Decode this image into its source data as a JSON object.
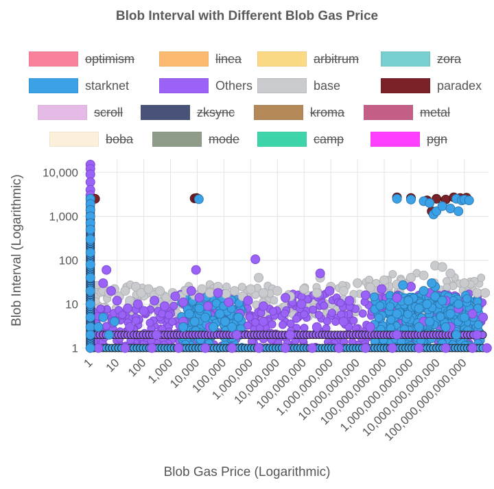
{
  "title": "Blob Interval with Different Blob Gas Price",
  "legend": [
    {
      "label": "optimism",
      "color": "#f7587b",
      "hidden": true
    },
    {
      "label": "linea",
      "color": "#fca442",
      "hidden": true
    },
    {
      "label": "arbitrum",
      "color": "#fccd5c",
      "hidden": true
    },
    {
      "label": "zora",
      "color": "#4bbfbf",
      "hidden": true
    },
    {
      "label": "starknet",
      "color": "#3ba2e8",
      "hidden": false
    },
    {
      "label": "Others",
      "color": "#9b62f7",
      "hidden": false
    },
    {
      "label": "base",
      "color": "#c9cbcf",
      "hidden": false
    },
    {
      "label": "paradex",
      "color": "#7a2228",
      "hidden": false
    },
    {
      "label": "scroll",
      "color": "#dea4e0",
      "hidden": true
    },
    {
      "label": "zksync",
      "color": "#0c1a4a",
      "hidden": true
    },
    {
      "label": "kroma",
      "color": "#9c6120",
      "hidden": true
    },
    {
      "label": "metal",
      "color": "#b02a5e",
      "hidden": true
    },
    {
      "label": "boba",
      "color": "#fdebd0",
      "hidden": true
    },
    {
      "label": "mode",
      "color": "#6b7c63",
      "hidden": true
    },
    {
      "label": "camp",
      "color": "#00c88f",
      "hidden": true
    },
    {
      "label": "pgn",
      "color": "#ff00ff",
      "hidden": true
    }
  ],
  "chart_data": {
    "type": "scatter",
    "title": "Blob Interval with Different Blob Gas Price",
    "xlabel": "Blob Gas Price (Logarithmic)",
    "ylabel": "Blob Interval (Logarithmic)",
    "x_scale": "log",
    "y_scale": "log",
    "xlim": [
      0.5,
      800000000000000
    ],
    "ylim": [
      0.85,
      20000
    ],
    "x_ticks": [
      1,
      10,
      100,
      1000,
      10000,
      100000,
      1000000,
      10000000,
      100000000,
      1000000000,
      10000000000,
      100000000000,
      1000000000000,
      10000000000000,
      100000000000000
    ],
    "x_tick_labels": [
      "1",
      "10",
      "100",
      "1,000",
      "10,000",
      "100,000",
      "1,000,000",
      "10,000,000",
      "100,000,000",
      "1,000,000,000",
      "10,000,000,000",
      "100,000,000,000",
      "1,000,000,000,000",
      "10,000,000,000,000",
      "100,000,000,000,000"
    ],
    "y_ticks": [
      1,
      10,
      100,
      1000,
      10000
    ],
    "y_tick_labels": [
      "1",
      "10",
      "100",
      "1,000",
      "10,000"
    ],
    "grid": true,
    "legend_position": "top",
    "series": [
      {
        "name": "base",
        "color": "#c9cbcf",
        "points": [
          [
            3,
            20
          ],
          [
            5,
            18
          ],
          [
            8,
            22
          ],
          [
            12,
            15
          ],
          [
            20,
            20
          ],
          [
            30,
            12
          ],
          [
            50,
            25
          ],
          [
            80,
            18
          ],
          [
            150,
            22
          ],
          [
            250,
            16
          ],
          [
            400,
            20
          ],
          [
            700,
            14
          ],
          [
            1200,
            18
          ],
          [
            2500,
            15
          ],
          [
            4000,
            20
          ],
          [
            8000,
            16
          ],
          [
            15000,
            22
          ],
          [
            30000,
            18
          ],
          [
            60000,
            25
          ],
          [
            120000,
            17
          ],
          [
            250000,
            20
          ],
          [
            500000,
            15
          ],
          [
            1000000,
            22
          ],
          [
            3000000,
            18
          ],
          [
            10000000,
            20
          ],
          [
            30000000,
            15
          ],
          [
            100000000,
            22
          ],
          [
            300000000,
            18
          ],
          [
            1000000000,
            25
          ],
          [
            3000000000,
            20
          ],
          [
            10000000000,
            30
          ],
          [
            30000000000,
            24
          ],
          [
            100000000000,
            35
          ],
          [
            300000000000,
            28
          ],
          [
            1000000000000,
            40
          ],
          [
            3000000000000,
            45
          ],
          [
            8000000000000,
            75
          ],
          [
            15000000000000,
            70
          ],
          [
            30000000000000,
            50
          ],
          [
            100000000000000,
            30
          ],
          [
            300000000000000,
            18
          ],
          [
            600000000000000,
            18
          ],
          [
            400000000,
            40
          ],
          [
            2000000,
            40
          ]
        ]
      },
      {
        "name": "Others",
        "color": "#9b62f7",
        "points": [
          [
            1,
            15000
          ],
          [
            1,
            12000
          ],
          [
            1,
            9000
          ],
          [
            1,
            6000
          ],
          [
            1,
            4000
          ],
          [
            1,
            3000
          ],
          [
            3,
            30
          ],
          [
            4,
            60
          ],
          [
            6,
            20
          ],
          [
            10,
            12
          ],
          [
            25,
            8
          ],
          [
            60,
            10
          ],
          [
            100,
            7
          ],
          [
            250,
            12
          ],
          [
            600,
            9
          ],
          [
            1500,
            15
          ],
          [
            3000,
            11
          ],
          [
            6000,
            20
          ],
          [
            9000,
            60
          ],
          [
            12000,
            14
          ],
          [
            25000,
            9
          ],
          [
            60000,
            18
          ],
          [
            150000,
            11
          ],
          [
            400000,
            6
          ],
          [
            1500000,
            105
          ],
          [
            800000,
            12
          ],
          [
            3000000,
            9
          ],
          [
            20000000,
            14
          ],
          [
            80000000,
            10
          ],
          [
            400000000,
            50
          ],
          [
            900000000,
            20
          ],
          [
            5000000000,
            12
          ],
          [
            20000000000,
            16
          ],
          [
            80000000000,
            22
          ],
          [
            300000000000,
            14
          ],
          [
            1000000000000,
            25
          ],
          [
            5000000000000,
            18
          ],
          [
            20000000000000,
            12
          ],
          [
            60000000000000,
            8
          ],
          [
            200000000000000,
            6
          ],
          [
            500000000000000,
            5
          ],
          [
            30,
            3
          ],
          [
            300,
            2
          ],
          [
            3000,
            4
          ],
          [
            30000,
            3
          ],
          [
            300000,
            2
          ],
          [
            3000000,
            4
          ],
          [
            30000000,
            2
          ],
          [
            300000000,
            3
          ],
          [
            3000000000,
            4
          ],
          [
            30000000000,
            3
          ],
          [
            300000000000,
            2
          ],
          [
            3000000000000,
            4
          ],
          [
            30000000000000,
            3
          ],
          [
            300000000000000,
            2
          ],
          [
            2,
            1
          ],
          [
            20,
            1
          ],
          [
            200,
            1
          ],
          [
            2000,
            1
          ],
          [
            20000,
            1
          ],
          [
            200000,
            1
          ],
          [
            2000000,
            1
          ],
          [
            20000000,
            1
          ],
          [
            200000000,
            1
          ],
          [
            2000000000,
            1
          ],
          [
            20000000000,
            1
          ],
          [
            200000000000,
            1
          ],
          [
            2000000000000,
            1
          ],
          [
            20000000000000,
            1
          ],
          [
            200000000000000,
            1
          ],
          [
            700000000000000,
            1
          ]
        ]
      },
      {
        "name": "paradex",
        "color": "#7a2228",
        "points": [
          [
            1.5,
            2500
          ],
          [
            8000,
            2550
          ],
          [
            9500,
            2600
          ],
          [
            11000,
            2500
          ],
          [
            300000000000,
            2700
          ],
          [
            1000000000000,
            2600
          ],
          [
            4000000000000,
            2300
          ],
          [
            9000000000000,
            2500
          ],
          [
            20000000000000,
            2400
          ],
          [
            40000000000000,
            2700
          ],
          [
            70000000000000,
            2600
          ],
          [
            120000000000000,
            2650
          ],
          [
            6000000000000,
            1300
          ]
        ]
      },
      {
        "name": "starknet",
        "color": "#3ba2e8",
        "points": [
          [
            1,
            2500
          ],
          [
            1,
            1900
          ],
          [
            1,
            1400
          ],
          [
            1,
            1000
          ],
          [
            1,
            700
          ],
          [
            1,
            500
          ],
          [
            1,
            300
          ],
          [
            1,
            150
          ],
          [
            1,
            80
          ],
          [
            1,
            40
          ],
          [
            1,
            20
          ],
          [
            1,
            10
          ],
          [
            1,
            5
          ],
          [
            1,
            3
          ],
          [
            1,
            2
          ],
          [
            1,
            1
          ],
          [
            2,
            3
          ],
          [
            3,
            5
          ],
          [
            5,
            2
          ],
          [
            8,
            4
          ],
          [
            3000,
            3
          ],
          [
            5000,
            6
          ],
          [
            8000,
            4
          ],
          [
            12000,
            8
          ],
          [
            20000,
            5
          ],
          [
            40000,
            3
          ],
          [
            70000,
            6
          ],
          [
            110000,
            4
          ],
          [
            200000,
            3
          ],
          [
            350000,
            5
          ],
          [
            11500,
            2450
          ],
          [
            500000000000,
            27
          ],
          [
            300000000000,
            2500
          ],
          [
            1000000000000,
            2400
          ],
          [
            3000000000000,
            2200
          ],
          [
            5000000000000,
            2000
          ],
          [
            7000000000000,
            1100
          ],
          [
            9000000000000,
            1300
          ],
          [
            15000000000000,
            1700
          ],
          [
            30000000000000,
            1500
          ],
          [
            50000000000000,
            2500
          ],
          [
            60000000000000,
            1300
          ],
          [
            80000000000000,
            2300
          ],
          [
            100000000000000,
            2400
          ],
          [
            150000000000000,
            2300
          ],
          [
            300000000000,
            6
          ],
          [
            800000000000,
            12
          ],
          [
            2000000000000,
            8
          ],
          [
            4000000000000,
            10
          ],
          [
            8000000000000,
            15
          ],
          [
            15000000000000,
            12
          ],
          [
            30000000000000,
            6
          ],
          [
            60000000000000,
            10
          ],
          [
            100000000000000,
            5
          ],
          [
            2000000000000,
            3
          ],
          [
            5000000000000,
            4
          ],
          [
            20000000000000,
            3
          ],
          [
            50000000000000,
            2
          ],
          [
            8000000000000,
            25
          ],
          [
            3000000000000,
            20
          ],
          [
            6000000000000,
            30
          ]
        ]
      }
    ]
  },
  "labels": {
    "x_title": "Blob Gas Price (Logarithmic)",
    "y_title": "Blob Interval (Logarithmic)"
  }
}
